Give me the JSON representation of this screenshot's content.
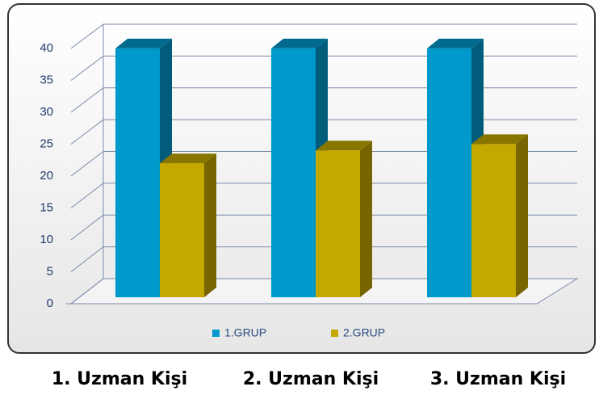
{
  "chart_data": {
    "type": "bar3d",
    "categories": [
      "1. Uzman Kişi",
      "2. Uzman Kişi",
      "3. Uzman Kişi"
    ],
    "series": [
      {
        "name": "1.GRUP",
        "color": "#0099cc",
        "values": [
          39,
          39,
          39
        ]
      },
      {
        "name": "2.GRUP",
        "color": "#c4a800",
        "values": [
          21,
          23,
          24
        ]
      }
    ],
    "ylim": [
      0,
      40
    ],
    "yticks": [
      0,
      5,
      10,
      15,
      20,
      25,
      30,
      35,
      40
    ],
    "grid": true,
    "legend": "bottom"
  }
}
